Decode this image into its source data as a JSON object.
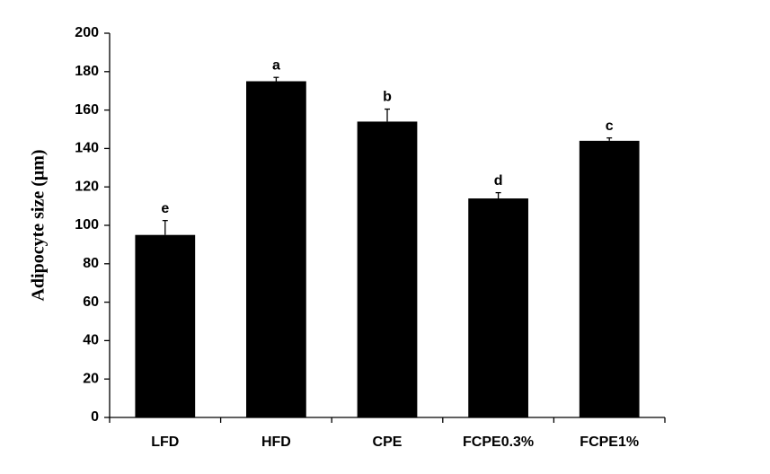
{
  "chart_data": {
    "type": "bar",
    "y_label": "Adipocyte size (μm)",
    "categories": [
      "LFD",
      "HFD",
      "CPE",
      "FCPE0.3%",
      "FCPE1%"
    ],
    "values": [
      95,
      175,
      154,
      114,
      144
    ],
    "errors": [
      7.5,
      2,
      6.5,
      3,
      1.5
    ],
    "annotations": [
      "e",
      "a",
      "b",
      "d",
      "c"
    ],
    "color": "#000000",
    "ylim": [
      0,
      200
    ],
    "yticks": [
      0,
      20,
      40,
      60,
      80,
      100,
      120,
      140,
      160,
      180,
      200
    ],
    "grid": false
  }
}
